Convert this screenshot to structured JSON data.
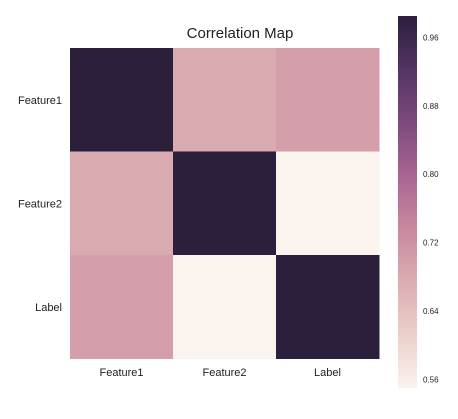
{
  "chart_data": {
    "type": "heatmap",
    "title": "Correlation Map",
    "xlabel": "",
    "ylabel": "",
    "x_categories": [
      "Feature1",
      "Feature2",
      "Label"
    ],
    "y_categories": [
      "Feature1",
      "Feature2",
      "Label"
    ],
    "values": [
      [
        1.0,
        0.68,
        0.7
      ],
      [
        0.68,
        1.0,
        0.55
      ],
      [
        0.7,
        0.55,
        1.0
      ]
    ],
    "colorbar": {
      "range": [
        0.55,
        0.985
      ],
      "ticks": [
        0.56,
        0.64,
        0.72,
        0.8,
        0.88,
        0.96
      ],
      "tick_labels": [
        "0.56",
        "0.64",
        "0.72",
        "0.80",
        "0.88",
        "0.96"
      ],
      "placement": "right"
    },
    "colormap_stops": [
      "#faf3ee",
      "#eccfca",
      "#dbadb1",
      "#c9889f",
      "#a86591",
      "#7c4a7d",
      "#533462",
      "#2c1f3c"
    ],
    "grid": false
  }
}
